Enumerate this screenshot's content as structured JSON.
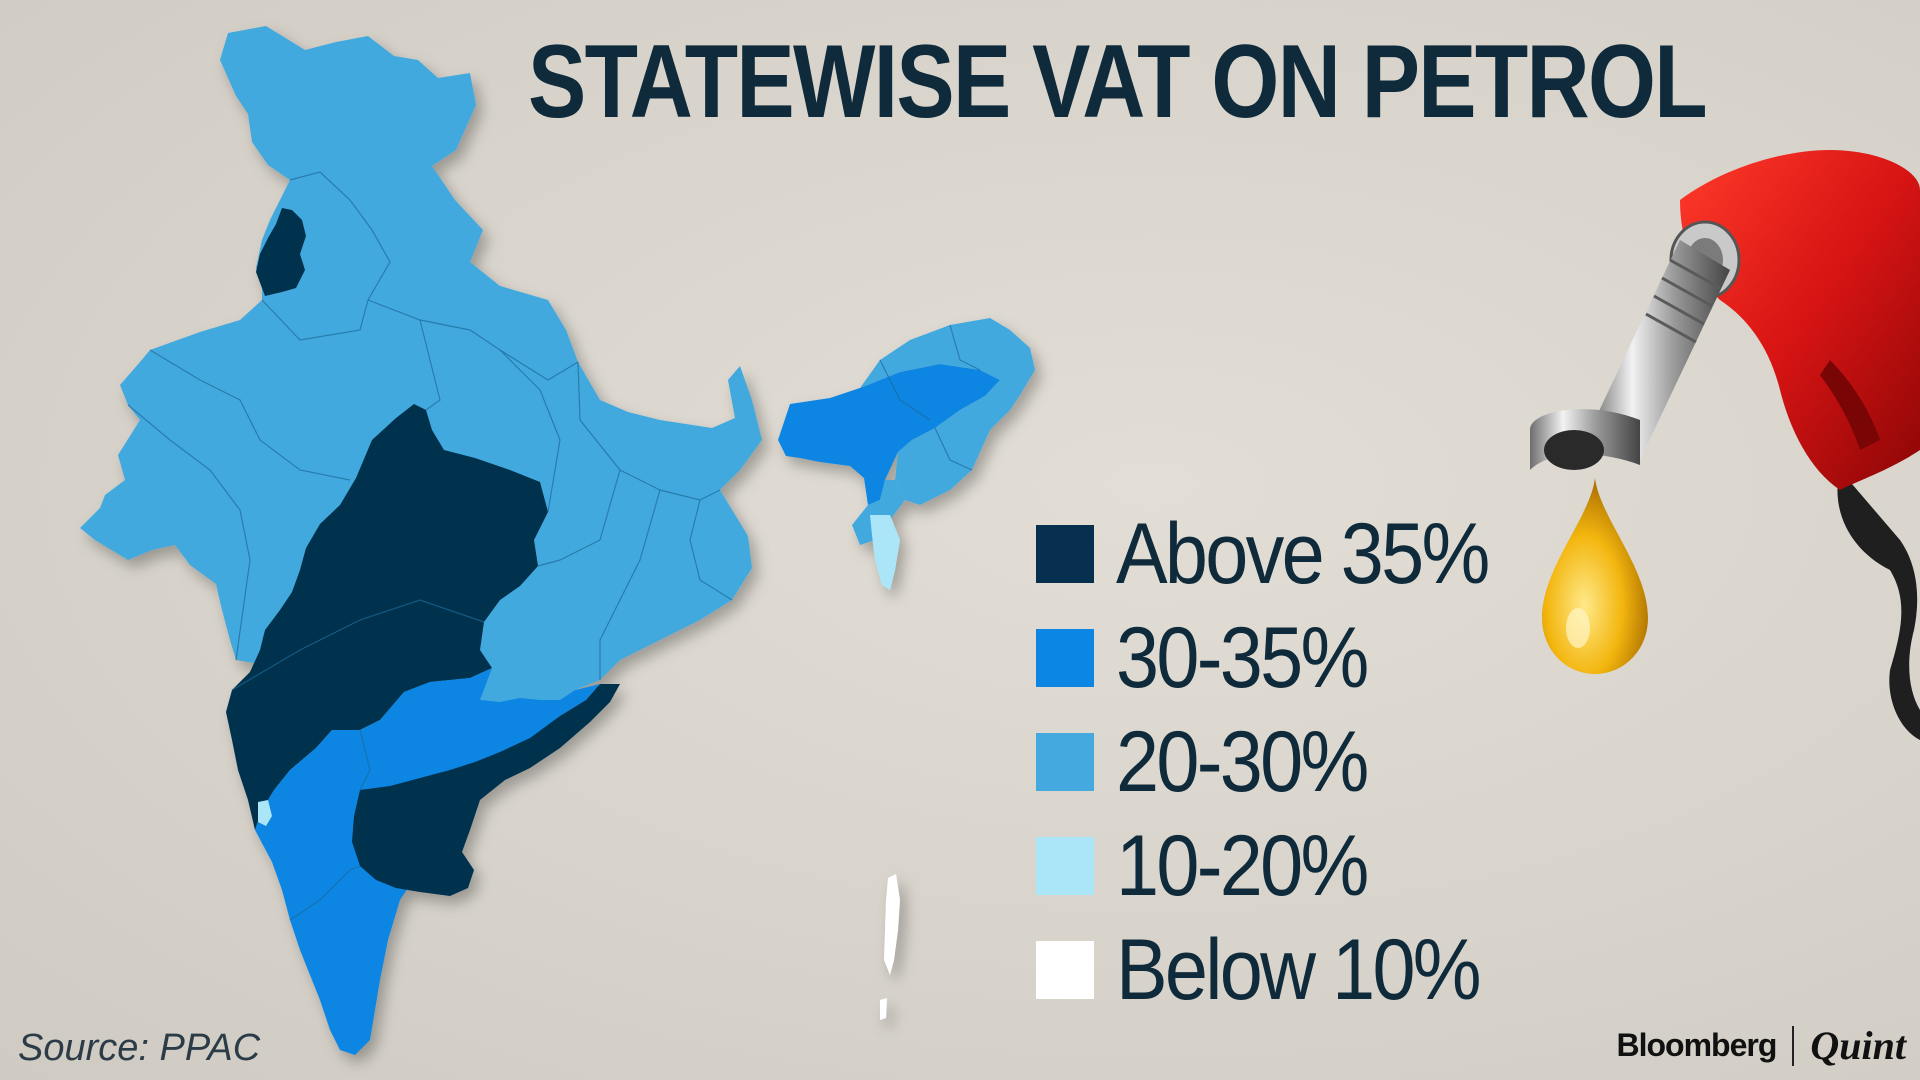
{
  "title": "STATEWISE VAT ON PETROL",
  "source": "Source: PPAC",
  "branding": {
    "left": "Bloomberg",
    "right": "Quint"
  },
  "colors": {
    "background": "#dcd8d0",
    "title": "#0f2a3a",
    "above_35": "#06304d",
    "range_30_35": "#0b86e3",
    "range_20_30": "#43a9de",
    "range_10_20": "#aae6f8",
    "below_10": "#ffffff"
  },
  "legend": [
    {
      "label": "Above 35%",
      "color": "#06304d"
    },
    {
      "label": "30-35%",
      "color": "#0b86e3"
    },
    {
      "label": "20-30%",
      "color": "#43a9de"
    },
    {
      "label": "10-20%",
      "color": "#aae6f8"
    },
    {
      "label": "Below 10%",
      "color": "#ffffff"
    }
  ],
  "map": {
    "regions": [
      {
        "name": "north-india",
        "category": "20-30%"
      },
      {
        "name": "punjab",
        "category": "Above 35%"
      },
      {
        "name": "central-west-india",
        "category": "Above 35%"
      },
      {
        "name": "karnataka-tamil-nadu-kerala",
        "category": "30-35%"
      },
      {
        "name": "andhra-pradesh-telangana",
        "category": "Above 35%"
      },
      {
        "name": "goa",
        "category": "10-20%"
      },
      {
        "name": "assam",
        "category": "30-35%"
      },
      {
        "name": "northeast-india",
        "category": "20-30%"
      },
      {
        "name": "mizoram",
        "category": "10-20%"
      },
      {
        "name": "andaman-and-nicobar",
        "category": "Below 10%"
      }
    ]
  },
  "icons": [
    "fuel-nozzle-icon",
    "fuel-drop-icon"
  ]
}
